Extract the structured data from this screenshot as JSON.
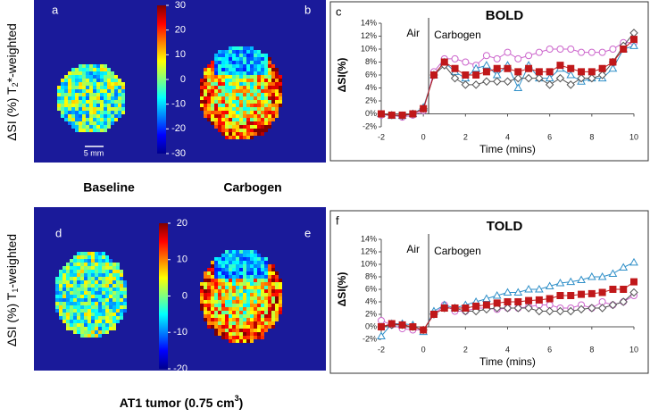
{
  "figure": {
    "panels": {
      "a": "a",
      "b": "b",
      "d": "d",
      "e": "e"
    },
    "row_labels": {
      "top": [
        "ΔSI (%) T",
        "2",
        "*-weighted"
      ],
      "bottom": [
        "ΔSI (%) T",
        "1",
        "-weighted"
      ]
    },
    "column_labels": [
      "Baseline",
      "Carbogen"
    ],
    "scale_bar": "5 mm",
    "footer": [
      "AT1 tumor (0.75 cm",
      "3",
      ")"
    ],
    "colorbars": [
      {
        "lim": [
          -30,
          30
        ],
        "ticks": [
          30,
          20,
          10,
          0,
          -10,
          -20,
          -30
        ]
      },
      {
        "lim": [
          -20,
          20
        ],
        "ticks": [
          20,
          10,
          0,
          -10,
          -20
        ]
      }
    ]
  },
  "chart_data": [
    {
      "type": "line",
      "panel": "c",
      "title": "BOLD",
      "ylabel": "ΔSI(%)",
      "xlabel": "Time (mins)",
      "annotations": [
        "Air",
        "Carbogen"
      ],
      "x": [
        -2,
        -1.5,
        -1,
        -0.5,
        0,
        0.5,
        1,
        1.5,
        2,
        2.5,
        3,
        3.5,
        4,
        4.5,
        5,
        5.5,
        6,
        6.5,
        7,
        7.5,
        8,
        8.5,
        9,
        9.5,
        10
      ],
      "xlim": [
        -2,
        10
      ],
      "xticks": [
        -2,
        0,
        2,
        4,
        6,
        8,
        10
      ],
      "ylim": [
        -2,
        14
      ],
      "yticks": [
        {
          "value": -2,
          "label": "-2%"
        },
        {
          "value": 0,
          "label": "0%"
        },
        {
          "value": 2,
          "label": "2%"
        },
        {
          "value": 4,
          "label": "4%"
        },
        {
          "value": 6,
          "label": "6%"
        },
        {
          "value": 8,
          "label": "8%"
        },
        {
          "value": 10,
          "label": "10%"
        },
        {
          "value": 12,
          "label": "12%"
        },
        {
          "value": 14,
          "label": "14%"
        }
      ],
      "series": [
        {
          "color": "#cc66cc",
          "marker": "circle",
          "values": [
            -0.2,
            -0.2,
            -0.5,
            -0.2,
            0.5,
            6.5,
            8.5,
            8.5,
            8,
            7.5,
            9,
            8.5,
            9.5,
            8.5,
            9,
            9.5,
            10,
            10,
            10,
            9.5,
            9.5,
            9.5,
            10,
            11,
            11
          ]
        },
        {
          "color": "#2f8fc8",
          "marker": "triangle",
          "values": [
            0,
            -0.3,
            -0.3,
            0,
            1,
            6,
            8,
            6.5,
            5.5,
            7,
            7.5,
            6,
            7.5,
            4,
            7.5,
            5.5,
            5.5,
            7,
            6,
            5,
            5.5,
            5.5,
            7,
            10,
            10.5
          ]
        },
        {
          "color": "#555555",
          "marker": "diamond",
          "values": [
            0,
            -0.2,
            -0.3,
            0,
            0.8,
            6,
            7.5,
            5.5,
            4.5,
            4.5,
            5,
            5,
            5,
            5.5,
            5.5,
            5.5,
            4.5,
            5.5,
            4.5,
            5.5,
            5.5,
            6,
            8,
            10.5,
            12.5
          ]
        },
        {
          "color": "#c0181a",
          "marker": "square",
          "values": [
            0,
            -0.2,
            -0.2,
            0,
            0.8,
            6,
            8,
            7,
            6,
            6,
            6.5,
            7,
            7,
            6.5,
            7,
            6.5,
            6.5,
            7.5,
            7,
            6.5,
            6.5,
            7,
            8,
            10,
            11.5
          ]
        }
      ]
    },
    {
      "type": "line",
      "panel": "f",
      "title": "TOLD",
      "ylabel": "ΔSI(%)",
      "xlabel": "Time (mins)",
      "annotations": [
        "Air",
        "Carbogen"
      ],
      "x": [
        -2,
        -1.5,
        -1,
        -0.5,
        0,
        0.5,
        1,
        1.5,
        2,
        2.5,
        3,
        3.5,
        4,
        4.5,
        5,
        5.5,
        6,
        6.5,
        7,
        7.5,
        8,
        8.5,
        9,
        9.5,
        10
      ],
      "xlim": [
        -2,
        10
      ],
      "xticks": [
        -2,
        0,
        2,
        4,
        6,
        8,
        10
      ],
      "ylim": [
        -2,
        14
      ],
      "yticks": [
        {
          "value": -2,
          "label": "-2%"
        },
        {
          "value": 0,
          "label": "0%"
        },
        {
          "value": 2,
          "label": "2%"
        },
        {
          "value": 4,
          "label": "4%"
        },
        {
          "value": 6,
          "label": "6%"
        },
        {
          "value": 8,
          "label": "8%"
        },
        {
          "value": 10,
          "label": "10%"
        },
        {
          "value": 12,
          "label": "12%"
        },
        {
          "value": 14,
          "label": "14%"
        }
      ],
      "series": [
        {
          "color": "#cc66cc",
          "marker": "circle",
          "values": [
            1,
            0.3,
            -0.3,
            -0.5,
            -0.5,
            2,
            3.5,
            2.5,
            2.5,
            3,
            3,
            2.8,
            3,
            3,
            3.2,
            3.5,
            3.5,
            3,
            3,
            3.5,
            3,
            4,
            3.5,
            4,
            5
          ]
        },
        {
          "color": "#2f8fc8",
          "marker": "triangle",
          "values": [
            -1.5,
            0.5,
            0.5,
            0.3,
            -0.8,
            2.5,
            3.5,
            3,
            3.5,
            4,
            4.5,
            5,
            5.5,
            5.5,
            6,
            6,
            6.5,
            7,
            7.2,
            7.5,
            8,
            8,
            8.5,
            9.5,
            10.3
          ]
        },
        {
          "color": "#555555",
          "marker": "diamond",
          "values": [
            0,
            0.3,
            0.3,
            0,
            -0.5,
            2,
            3,
            3,
            2.5,
            2.5,
            2.8,
            3,
            3,
            3,
            3,
            2.5,
            2.5,
            2.5,
            2.5,
            2.8,
            3,
            3,
            3.5,
            4,
            5.5
          ]
        },
        {
          "color": "#c0181a",
          "marker": "square",
          "values": [
            0,
            0.5,
            0.3,
            0,
            -0.5,
            2,
            3,
            3,
            3,
            3.3,
            3.5,
            3.8,
            4,
            4,
            4.2,
            4.3,
            4.5,
            5,
            5,
            5.2,
            5.3,
            5.5,
            6,
            6,
            7.2
          ]
        }
      ]
    }
  ]
}
